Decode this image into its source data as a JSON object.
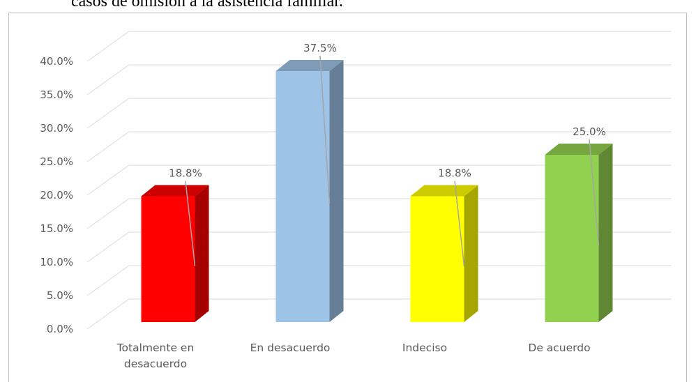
{
  "chart_data": {
    "type": "bar3d",
    "title": "casos de omisión a la asistencia familiar.",
    "categories": [
      "Totalmente en desacuerdo",
      "En desacuerdo",
      "Indeciso",
      "De acuerdo"
    ],
    "values": [
      18.8,
      37.5,
      18.8,
      25.0
    ],
    "value_labels": [
      "18.8%",
      "37.5%",
      "18.8%",
      "25.0%"
    ],
    "colors": [
      "#ff0000",
      "#9dc3e6",
      "#ffff00",
      "#92d050"
    ],
    "ylim": [
      0,
      40
    ],
    "yticks": [
      {
        "value": 0,
        "label": "0.0%"
      },
      {
        "value": 5,
        "label": "5.0%"
      },
      {
        "value": 10,
        "label": "10.0%"
      },
      {
        "value": 15,
        "label": "15.0%"
      },
      {
        "value": 20,
        "label": "20.0%"
      },
      {
        "value": 25,
        "label": "25.0%"
      },
      {
        "value": 30,
        "label": "30.0%"
      },
      {
        "value": 35,
        "label": "35.0%"
      },
      {
        "value": 40,
        "label": "40.0%"
      }
    ],
    "grid": true
  }
}
